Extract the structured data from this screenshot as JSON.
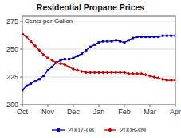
{
  "chart_data": {
    "type": "line",
    "title": "Residential Propane Prices",
    "subtitle": "Cents per Gallon",
    "categories": [
      "Oct",
      null,
      null,
      null,
      null,
      null,
      "Nov",
      null,
      null,
      null,
      null,
      null,
      "Dec",
      null,
      null,
      null,
      null,
      null,
      "Jan",
      null,
      null,
      null,
      null,
      null,
      "Feb",
      null,
      null,
      null,
      null,
      null,
      "Mar",
      null,
      null,
      null,
      null,
      null,
      "Apr"
    ],
    "series": [
      {
        "name": "2007-08",
        "color": "#0000bb",
        "marker": "square",
        "values": [
          213,
          217,
          219,
          221,
          223,
          226,
          231,
          234,
          238,
          240,
          241,
          241,
          242,
          244,
          246,
          249,
          252,
          254,
          256,
          257,
          257,
          257,
          258,
          257,
          256,
          258,
          260,
          261,
          261,
          261,
          261,
          261,
          261,
          262,
          262,
          262,
          262
        ]
      },
      {
        "name": "2008-09",
        "color": "#cc0000",
        "marker": "diamond",
        "values": [
          264,
          261,
          257,
          253,
          249,
          245,
          242,
          240,
          238,
          237,
          236,
          234,
          232,
          231,
          230,
          229,
          229,
          229,
          229,
          229,
          229,
          229,
          229,
          229,
          229,
          228,
          228,
          228,
          228,
          227,
          226,
          225,
          224,
          223,
          222,
          222,
          222
        ]
      }
    ],
    "ylim": [
      200,
      280
    ],
    "yticks": [
      200,
      225,
      250,
      275
    ],
    "grid": true,
    "legend": "bottom"
  }
}
